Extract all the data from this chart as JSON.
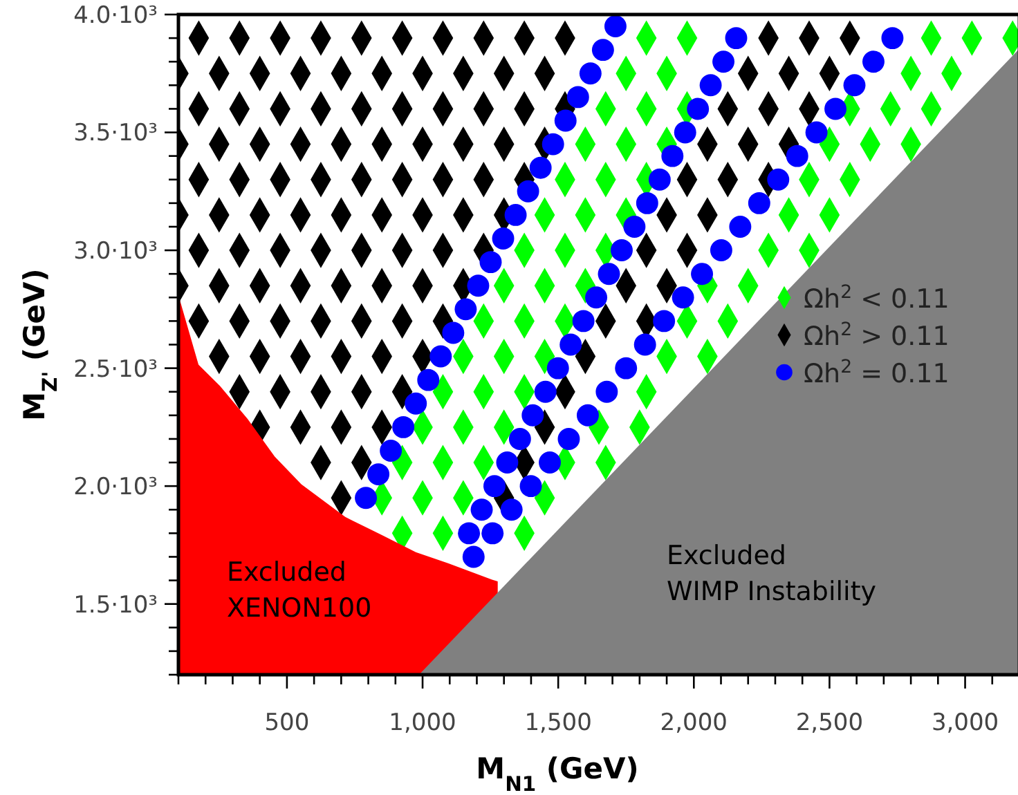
{
  "chart_data": {
    "type": "scatter",
    "xlabel": "M$_{N1}$ (GeV)",
    "ylabel": "M$_{Z'}$ (GeV)",
    "xlim": [
      100,
      3200
    ],
    "ylim": [
      1200,
      4000
    ],
    "xticks": [
      {
        "value": 100,
        "label": null
      },
      {
        "value": 200,
        "label": null
      },
      {
        "value": 300,
        "label": null
      },
      {
        "value": 400,
        "label": null
      },
      500,
      {
        "value": 600,
        "label": null
      },
      {
        "value": 700,
        "label": null
      },
      {
        "value": 800,
        "label": null
      },
      {
        "value": 900,
        "label": null
      },
      {
        "value": 1000,
        "label": "1,000"
      },
      {
        "value": 1100,
        "label": null
      },
      {
        "value": 1200,
        "label": null
      },
      {
        "value": 1300,
        "label": null
      },
      {
        "value": 1400,
        "label": null
      },
      {
        "value": 1500,
        "label": "1,500"
      },
      {
        "value": 1600,
        "label": null
      },
      {
        "value": 1700,
        "label": null
      },
      {
        "value": 1800,
        "label": null
      },
      {
        "value": 1900,
        "label": null
      },
      {
        "value": 2000,
        "label": "2,000"
      },
      {
        "value": 2100,
        "label": null
      },
      {
        "value": 2200,
        "label": null
      },
      {
        "value": 2300,
        "label": null
      },
      {
        "value": 2400,
        "label": null
      },
      {
        "value": 2500,
        "label": "2,500"
      },
      {
        "value": 2600,
        "label": null
      },
      {
        "value": 2700,
        "label": null
      },
      {
        "value": 2800,
        "label": null
      },
      {
        "value": 2900,
        "label": null
      },
      {
        "value": 3000,
        "label": "3,000"
      },
      {
        "value": 3100,
        "label": null
      },
      {
        "value": 3200,
        "label": null
      }
    ],
    "yticks": [
      {
        "value": 1200,
        "label": null
      },
      {
        "value": 1300,
        "label": null
      },
      {
        "value": 1400,
        "label": null
      },
      {
        "value": 1500,
        "label": "1.5·10³"
      },
      {
        "value": 1600,
        "label": null
      },
      {
        "value": 1700,
        "label": null
      },
      {
        "value": 1800,
        "label": null
      },
      {
        "value": 1900,
        "label": null
      },
      {
        "value": 2000,
        "label": "2.0·10³"
      },
      {
        "value": 2100,
        "label": null
      },
      {
        "value": 2200,
        "label": null
      },
      {
        "value": 2300,
        "label": null
      },
      {
        "value": 2400,
        "label": null
      },
      {
        "value": 2500,
        "label": "2.5·10³"
      },
      {
        "value": 2600,
        "label": null
      },
      {
        "value": 2700,
        "label": null
      },
      {
        "value": 2800,
        "label": null
      },
      {
        "value": 2900,
        "label": null
      },
      {
        "value": 3000,
        "label": "3.0·10³"
      },
      {
        "value": 3100,
        "label": null
      },
      {
        "value": 3200,
        "label": null
      },
      {
        "value": 3300,
        "label": null
      },
      {
        "value": 3400,
        "label": null
      },
      {
        "value": 3500,
        "label": "3.5·10³"
      },
      {
        "value": 3600,
        "label": null
      },
      {
        "value": 3700,
        "label": null
      },
      {
        "value": 3800,
        "label": null
      },
      {
        "value": 3900,
        "label": null
      },
      {
        "value": 4000,
        "label": "4.0·10³"
      }
    ],
    "grid": false,
    "legend": "right",
    "series": [
      {
        "name": "Ωh$^{2}$ < 0.11",
        "color": "#00ff00",
        "marker": "diamond",
        "x": [
          925,
          1075,
          1375,
          850,
          1000,
          1150,
          1450,
          925,
          1075,
          1225,
          1525,
          1675,
          1000,
          1150,
          1300,
          1650,
          1800,
          1075,
          1225,
          1375,
          1825,
          1150,
          1300,
          1450,
          1900,
          2050,
          1225,
          1375,
          1525,
          1975,
          2125,
          1300,
          1450,
          1600,
          2050,
          2200,
          1375,
          1525,
          1675,
          2275,
          2425,
          1450,
          1600,
          1750,
          2350,
          2500,
          1525,
          1675,
          1825,
          2425,
          2575,
          1600,
          1750,
          1900,
          2500,
          2650,
          2800,
          1675,
          1825,
          1975,
          2575,
          2725,
          2875,
          1750,
          1900,
          2800,
          2950,
          1825,
          1975,
          2875,
          3025,
          3175
        ],
        "values": [
          1800,
          1800,
          1800,
          1950,
          1950,
          1950,
          1950,
          2100,
          2100,
          2100,
          2100,
          2100,
          2250,
          2250,
          2250,
          2250,
          2250,
          2400,
          2400,
          2400,
          2400,
          2550,
          2550,
          2550,
          2550,
          2550,
          2700,
          2700,
          2700,
          2700,
          2700,
          2850,
          2850,
          2850,
          2850,
          2850,
          3000,
          3000,
          3000,
          3000,
          3000,
          3150,
          3150,
          3150,
          3150,
          3150,
          3300,
          3300,
          3300,
          3300,
          3300,
          3450,
          3450,
          3450,
          3450,
          3450,
          3450,
          3600,
          3600,
          3600,
          3600,
          3600,
          3600,
          3750,
          3750,
          3750,
          3750,
          3900,
          3900,
          3900,
          3900,
          3900
        ]
      },
      {
        "name": "Ωh$^{2}$ > 0.11",
        "color": "#000000",
        "marker": "diamond",
        "x": [
          700,
          1300,
          625,
          775,
          1375,
          400,
          550,
          700,
          850,
          1450,
          325,
          475,
          625,
          775,
          925,
          1525,
          250,
          400,
          550,
          700,
          850,
          1000,
          1600,
          175,
          325,
          475,
          625,
          775,
          925,
          1075,
          1675,
          1825,
          100,
          250,
          400,
          550,
          700,
          850,
          1000,
          1150,
          1750,
          1900,
          175,
          325,
          475,
          625,
          775,
          925,
          1075,
          1225,
          1825,
          1975,
          100,
          250,
          400,
          550,
          700,
          850,
          1000,
          1150,
          1300,
          1900,
          2050,
          175,
          325,
          475,
          625,
          775,
          925,
          1075,
          1225,
          1375,
          1975,
          2125,
          2275,
          100,
          250,
          400,
          550,
          700,
          850,
          1000,
          1150,
          1300,
          1450,
          2050,
          2200,
          2350,
          175,
          325,
          475,
          625,
          775,
          925,
          1075,
          1225,
          1375,
          1525,
          2125,
          2275,
          2425,
          100,
          250,
          400,
          550,
          700,
          850,
          1000,
          1150,
          1300,
          1450,
          2200,
          2350,
          2500,
          175,
          325,
          475,
          625,
          775,
          925,
          1075,
          1225,
          1375,
          1525,
          2275,
          2425,
          2575
        ],
        "values": [
          1950,
          1950,
          2100,
          2100,
          2100,
          2250,
          2250,
          2250,
          2250,
          2250,
          2400,
          2400,
          2400,
          2400,
          2400,
          2400,
          2550,
          2550,
          2550,
          2550,
          2550,
          2550,
          2550,
          2700,
          2700,
          2700,
          2700,
          2700,
          2700,
          2700,
          2700,
          2700,
          2850,
          2850,
          2850,
          2850,
          2850,
          2850,
          2850,
          2850,
          2850,
          2850,
          3000,
          3000,
          3000,
          3000,
          3000,
          3000,
          3000,
          3000,
          3000,
          3000,
          3150,
          3150,
          3150,
          3150,
          3150,
          3150,
          3150,
          3150,
          3150,
          3150,
          3150,
          3300,
          3300,
          3300,
          3300,
          3300,
          3300,
          3300,
          3300,
          3300,
          3300,
          3300,
          3300,
          3450,
          3450,
          3450,
          3450,
          3450,
          3450,
          3450,
          3450,
          3450,
          3450,
          3450,
          3450,
          3450,
          3600,
          3600,
          3600,
          3600,
          3600,
          3600,
          3600,
          3600,
          3600,
          3600,
          3600,
          3600,
          3600,
          3750,
          3750,
          3750,
          3750,
          3750,
          3750,
          3750,
          3750,
          3750,
          3750,
          3750,
          3750,
          3750,
          3900,
          3900,
          3900,
          3900,
          3900,
          3900,
          3900,
          3900,
          3900,
          3900,
          3900,
          3900,
          3900
        ]
      },
      {
        "color": "#ff0000",
        "type": "area",
        "x": [
          100,
          174,
          253,
          355,
          455,
          553,
          715,
          854,
          975,
          1094,
          1256,
          1277
        ],
        "values": [
          2810,
          2515,
          2425,
          2285,
          2125,
          2008,
          1869,
          1790,
          1720,
          1673,
          1603,
          1596
        ]
      },
      {
        "color": "#808080",
        "type": "area",
        "x": [
          987,
          3200
        ],
        "values": [
          1200,
          3855
        ]
      },
      {
        "name": "Ωh$^{2}$ = 0.11",
        "color": "#0000ff",
        "marker": "circle",
        "x": [
          791,
          837,
          883,
          929,
          975,
          1021,
          1067,
          1113,
          1159,
          1205,
          1251,
          1297,
          1343,
          1389,
          1435,
          1481,
          1527,
          1573,
          1619,
          1665,
          1711,
          1171,
          1218,
          1265,
          1312,
          1359,
          1406,
          1453,
          1499,
          1546,
          1593,
          1640,
          1687,
          1734,
          1781,
          1828,
          1874,
          1921,
          1968,
          2015,
          2062,
          2109,
          2156,
          1188,
          1258,
          1328,
          1399,
          1469,
          1539,
          1609,
          1679,
          1750,
          1820,
          1890,
          1960,
          2030,
          2101,
          2171,
          2241,
          2311,
          2381,
          2452,
          2522,
          2592,
          2662,
          2732
        ],
        "values": [
          1950,
          2050,
          2150,
          2250,
          2350,
          2450,
          2550,
          2650,
          2750,
          2850,
          2950,
          3050,
          3150,
          3250,
          3350,
          3450,
          3550,
          3650,
          3750,
          3850,
          3950,
          1800,
          1900,
          2000,
          2100,
          2200,
          2300,
          2400,
          2500,
          2600,
          2700,
          2800,
          2900,
          3000,
          3100,
          3200,
          3300,
          3400,
          3500,
          3600,
          3700,
          3800,
          3900,
          1700,
          1800,
          1900,
          2000,
          2100,
          2200,
          2300,
          2400,
          2500,
          2600,
          2700,
          2800,
          2900,
          3000,
          3100,
          3200,
          3300,
          3400,
          3500,
          3600,
          3700,
          3800,
          3900
        ]
      }
    ],
    "annotations": [
      "Excluded\nXENON100",
      "Excluded\nWIMP Instability"
    ]
  }
}
